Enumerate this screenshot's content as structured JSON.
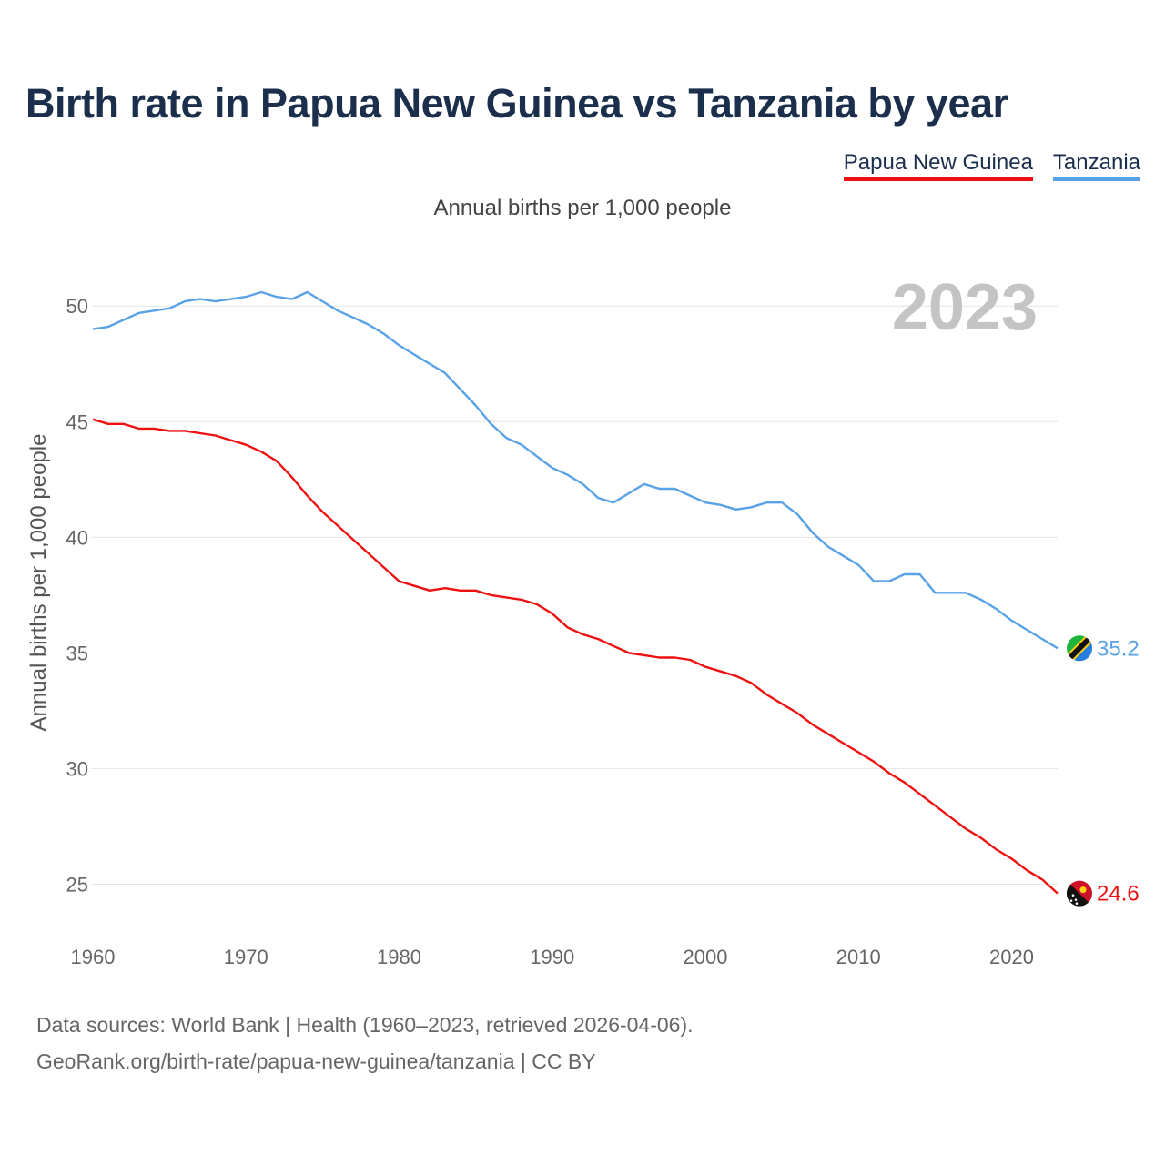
{
  "colors": {
    "pride": "#ee1111",
    "tanz": "#5aa2e6",
    "grid": "#e5e5e5",
    "title": "#1b2f4d"
  },
  "chart_data": {
    "type": "line",
    "title": "Birth rate in Papua New Guinea vs Tanzania by year",
    "subtitle": "Annual births per 1,000 people",
    "ylabel": "Annual births per 1,000 people",
    "xlabel": "",
    "xlim": [
      1960,
      2023
    ],
    "ylim": [
      22.5,
      53
    ],
    "yticks": [
      25,
      30,
      35,
      40,
      45,
      50
    ],
    "xticks": [
      1960,
      1970,
      1980,
      1990,
      2000,
      2010,
      2020
    ],
    "year_overlay": "2023",
    "x": [
      1960,
      1961,
      1962,
      1963,
      1964,
      1965,
      1966,
      1967,
      1968,
      1969,
      1970,
      1971,
      1972,
      1973,
      1974,
      1975,
      1976,
      1977,
      1978,
      1979,
      1980,
      1981,
      1982,
      1983,
      1984,
      1985,
      1986,
      1987,
      1988,
      1989,
      1990,
      1991,
      1992,
      1993,
      1994,
      1995,
      1996,
      1997,
      1998,
      1999,
      2000,
      2001,
      2002,
      2003,
      2004,
      2005,
      2006,
      2007,
      2008,
      2009,
      2010,
      2011,
      2012,
      2013,
      2014,
      2015,
      2016,
      2017,
      2018,
      2019,
      2020,
      2021,
      2022,
      2023
    ],
    "series": [
      {
        "name": "Papua New Guinea",
        "color_key": "pride",
        "end_label": "24.6",
        "flag": "papua-new-guinea-flag-icon",
        "values": [
          45.1,
          44.9,
          44.9,
          44.7,
          44.7,
          44.6,
          44.6,
          44.5,
          44.4,
          44.2,
          44.0,
          43.7,
          43.3,
          42.6,
          41.8,
          41.1,
          40.5,
          39.9,
          39.3,
          38.7,
          38.1,
          37.9,
          37.7,
          37.8,
          37.7,
          37.7,
          37.5,
          37.4,
          37.3,
          37.1,
          36.7,
          36.1,
          35.8,
          35.6,
          35.3,
          35.0,
          34.9,
          34.8,
          34.8,
          34.7,
          34.4,
          34.2,
          34.0,
          33.7,
          33.2,
          32.8,
          32.4,
          31.9,
          31.5,
          31.1,
          30.7,
          30.3,
          29.8,
          29.4,
          28.9,
          28.4,
          27.9,
          27.4,
          27.0,
          26.5,
          26.1,
          25.6,
          25.2,
          24.6
        ]
      },
      {
        "name": "Tanzania",
        "color_key": "tanz",
        "end_label": "35.2",
        "flag": "tanzania-flag-icon",
        "values": [
          49.0,
          49.1,
          49.4,
          49.7,
          49.8,
          49.9,
          50.2,
          50.3,
          50.2,
          50.3,
          50.4,
          50.6,
          50.4,
          50.3,
          50.6,
          50.2,
          49.8,
          49.5,
          49.2,
          48.8,
          48.3,
          47.9,
          47.5,
          47.1,
          46.4,
          45.7,
          44.9,
          44.3,
          44.0,
          43.5,
          43.0,
          42.7,
          42.3,
          41.7,
          41.5,
          41.9,
          42.3,
          42.1,
          42.1,
          41.8,
          41.5,
          41.4,
          41.2,
          41.3,
          41.5,
          41.5,
          41.0,
          40.2,
          39.6,
          39.2,
          38.8,
          38.1,
          38.1,
          38.4,
          38.4,
          37.6,
          37.6,
          37.6,
          37.3,
          36.9,
          36.4,
          36.0,
          35.6,
          35.2
        ]
      }
    ]
  },
  "footer": {
    "line1": "Data sources: World Bank | Health (1960–2023, retrieved 2026-04-06).",
    "line2": "GeoRank.org/birth-rate/papua-new-guinea/tanzania | CC BY"
  }
}
